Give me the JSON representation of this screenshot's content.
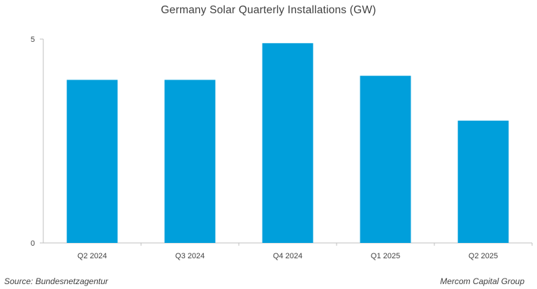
{
  "page": {
    "title": "Germany Solar Quarterly Installations (GW)",
    "source": "Source: Bundesnetzagentur",
    "credit": "Mercom Capital Group"
  },
  "colors": {
    "bar": "#009FDB",
    "axis": "#BFBFBF",
    "text": "#404040"
  },
  "chart_data": {
    "type": "bar",
    "title": "Germany Solar Quarterly Installations (GW)",
    "categories": [
      "Q2 2024",
      "Q3 2024",
      "Q4 2024",
      "Q1 2025",
      "Q2 2025"
    ],
    "values": [
      4.0,
      4.0,
      4.9,
      4.1,
      3.0
    ],
    "xlabel": "",
    "ylabel": "",
    "ylim": [
      0,
      5
    ],
    "yticks": [
      0,
      5
    ],
    "grid": false,
    "legend": "none"
  }
}
